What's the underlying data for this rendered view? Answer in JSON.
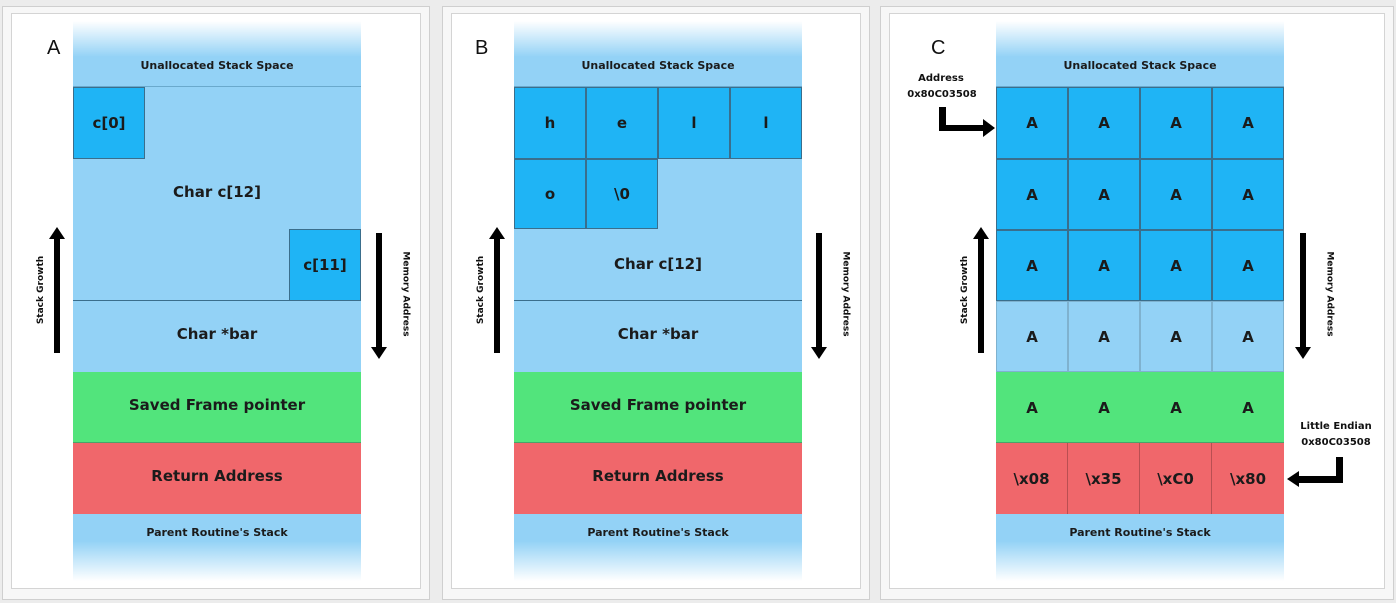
{
  "panels": [
    {
      "letter": "A",
      "unallocated": "Unallocated Stack Space",
      "c0": "c[0]",
      "char_array": "Char c[12]",
      "c11": "c[11]",
      "char_bar": "Char *bar",
      "saved_fp": "Saved Frame pointer",
      "return_address": "Return Address",
      "parent": "Parent Routine's Stack",
      "stack_growth": "Stack Growth",
      "memory_address": "Memory Address"
    },
    {
      "letter": "B",
      "unallocated": "Unallocated Stack Space",
      "chars": [
        "h",
        "e",
        "l",
        "l",
        "o",
        "\\0"
      ],
      "char_array": "Char c[12]",
      "char_bar": "Char *bar",
      "saved_fp": "Saved Frame pointer",
      "return_address": "Return Address",
      "parent": "Parent Routine's Stack",
      "stack_growth": "Stack Growth",
      "memory_address": "Memory Address"
    },
    {
      "letter": "C",
      "unallocated": "Unallocated Stack Space",
      "fill_char": "A",
      "return_bytes": [
        "\\x08",
        "\\x35",
        "\\xC0",
        "\\x80"
      ],
      "parent": "Parent Routine's Stack",
      "address_label": "Address",
      "address_value": "0x80C03508",
      "little_endian_label": "Little Endian",
      "little_endian_value": "0x80C03508",
      "stack_growth": "Stack Growth",
      "memory_address": "Memory Address"
    }
  ],
  "colors": {
    "buffer": "#1fb4f5",
    "stack": "#93d2f6",
    "saved_fp": "#52e47c",
    "return_address": "#f0676b"
  }
}
